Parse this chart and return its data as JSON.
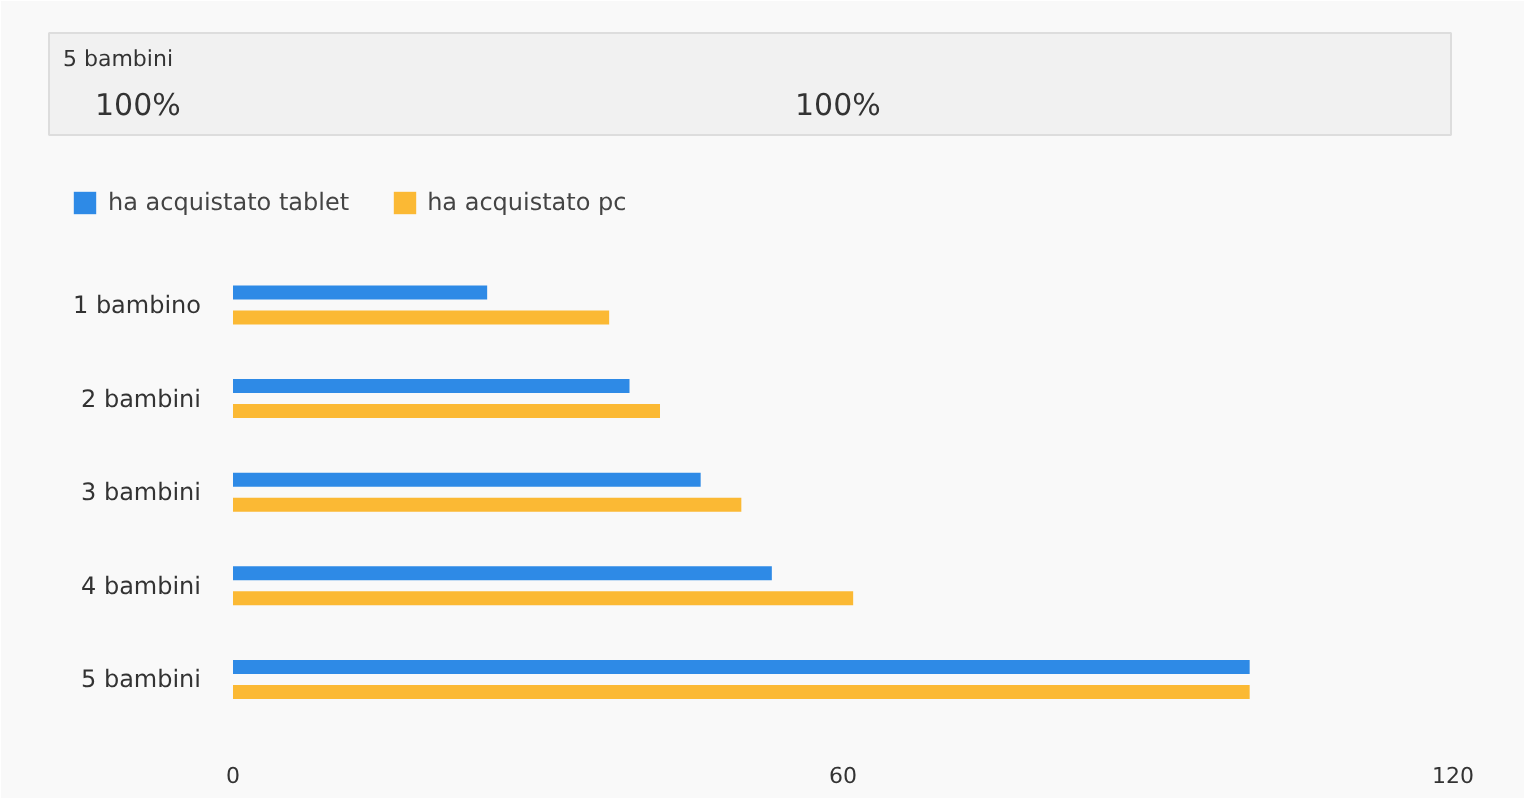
{
  "chart_data": {
    "type": "bar",
    "orientation": "horizontal",
    "categories": [
      "1 bambino",
      "2 bambini",
      "3 bambini",
      "4 bambini",
      "5 bambini"
    ],
    "series": [
      {
        "name": "ha acquistato tablet",
        "color": "#2e8ae6",
        "values": [
          25,
          39,
          46,
          53,
          100
        ]
      },
      {
        "name": "ha acquistato pc",
        "color": "#fbb934",
        "values": [
          37,
          42,
          50,
          61,
          100
        ]
      }
    ],
    "xlim": [
      0,
      120
    ],
    "xticks": [
      0,
      60,
      120
    ],
    "grid": false,
    "legend": "top left",
    "annotations": [
      "5 bambini",
      "100%",
      "100%"
    ]
  }
}
